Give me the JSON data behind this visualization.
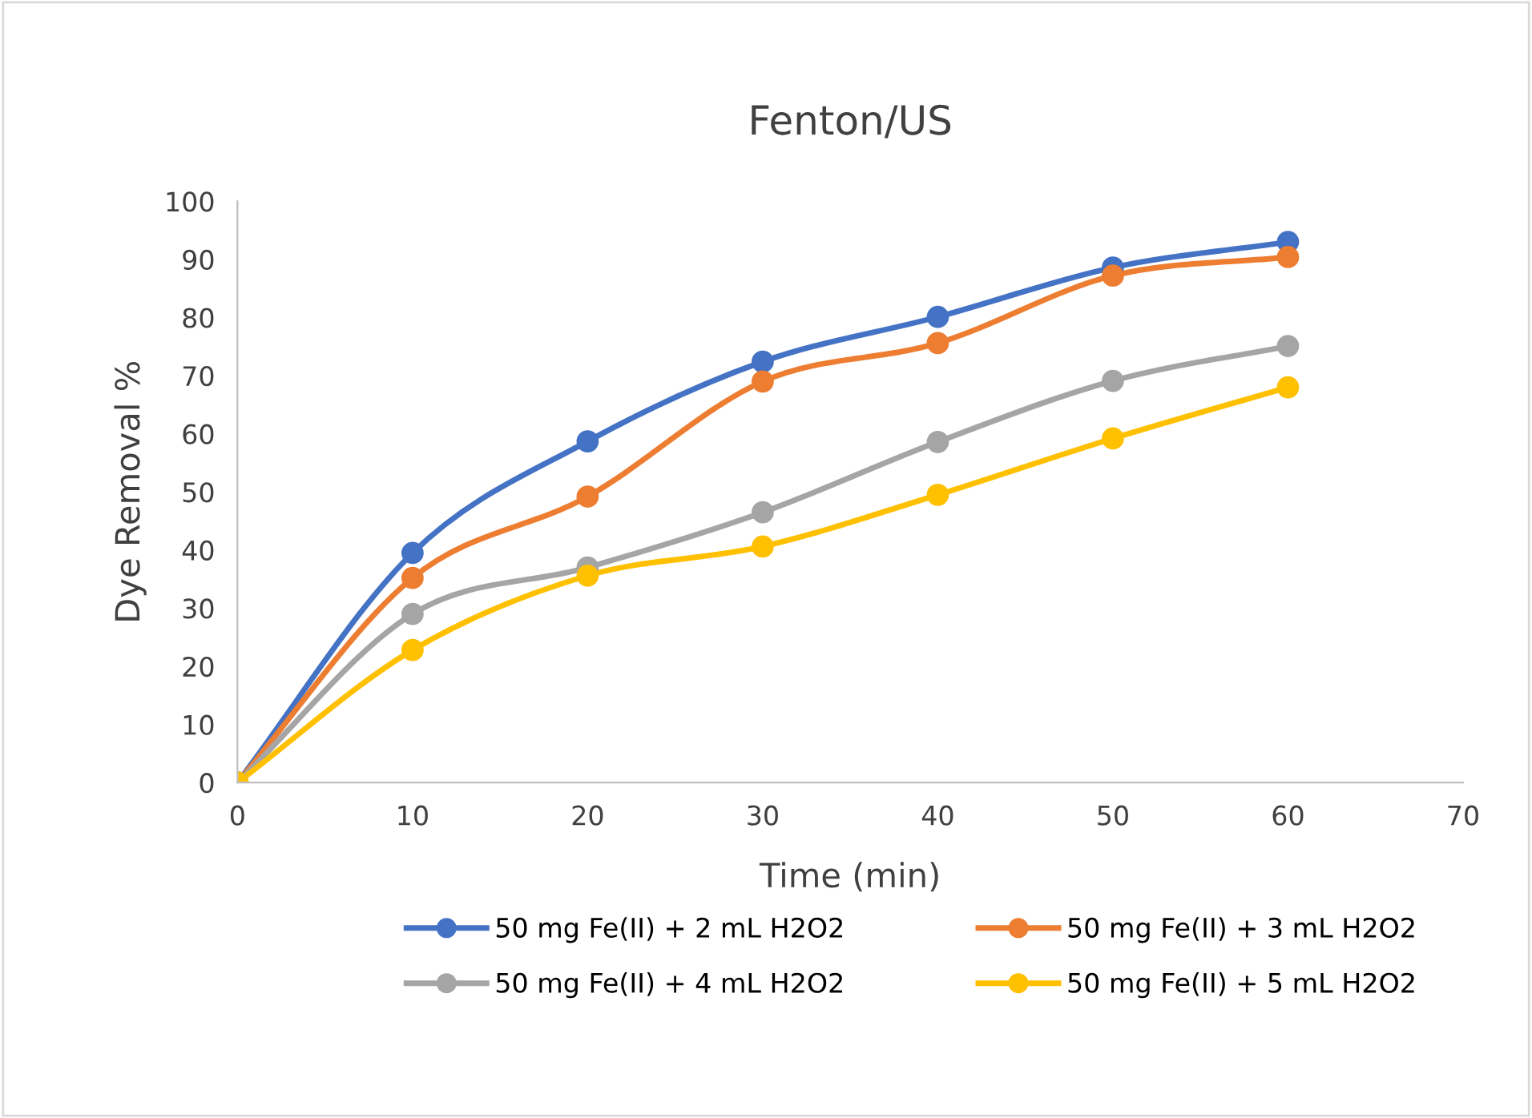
{
  "chart_data": {
    "type": "line",
    "title": "Fenton/US",
    "xlabel": "Time (min)",
    "ylabel": "Dye Removal %",
    "x": [
      0,
      10,
      20,
      30,
      40,
      50,
      60
    ],
    "series": [
      {
        "name": "50 mg Fe(II) + 2 mL H2O2",
        "color": "#4472c4",
        "values": [
          0,
          39.5,
          58.7,
          72.4,
          80.1,
          88.6,
          93
        ]
      },
      {
        "name": "50 mg Fe(II) + 3 mL H2O2",
        "color": "#ed7d31",
        "values": [
          0,
          35.2,
          49.2,
          69,
          75.6,
          87.2,
          90.4
        ]
      },
      {
        "name": "50 mg Fe(II) + 4 mL H2O2",
        "color": "#a5a5a5",
        "values": [
          0,
          29,
          37,
          46.5,
          58.6,
          69.1,
          75.1
        ]
      },
      {
        "name": "50 mg Fe(II) + 5 mL H2O2",
        "color": "#ffc000",
        "values": [
          0,
          22.8,
          35.6,
          40.6,
          49.5,
          59.2,
          68
        ]
      }
    ],
    "xlim": [
      0,
      70
    ],
    "xticks": [
      0,
      10,
      20,
      30,
      40,
      50,
      60,
      70
    ],
    "ylim": [
      0,
      100
    ],
    "yticks": [
      0,
      10,
      20,
      30,
      40,
      50,
      60,
      70,
      80,
      90,
      100
    ],
    "grid": false,
    "legend": "bottom",
    "marker": "circle",
    "line_style": "solid"
  }
}
